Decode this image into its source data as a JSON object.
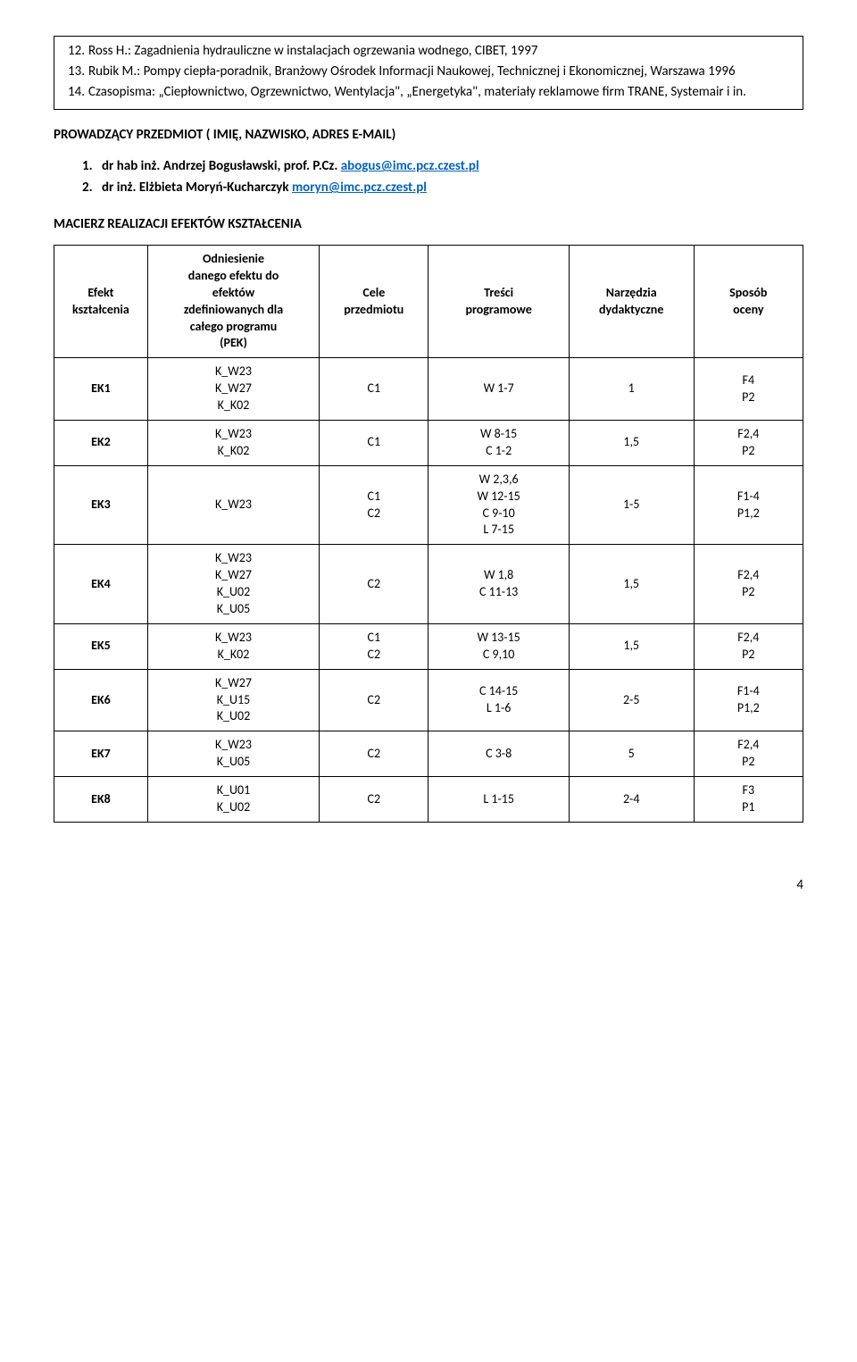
{
  "references": {
    "items": [
      {
        "num": "12.",
        "text": "Ross H.: Zagadnienia hydrauliczne w instalacjach ogrzewania wodnego, CIBET, 1997"
      },
      {
        "num": "13.",
        "text": "Rubik M.: Pompy ciepła-poradnik, Branżowy Ośrodek Informacji Naukowej, Technicznej i Ekonomicznej, Warszawa 1996"
      },
      {
        "num": "14.",
        "text": "Czasopisma: „Ciepłownictwo, Ogrzewnictwo, Wentylacja\", „Energetyka\", materiały reklamowe firm TRANE, Systemair i in."
      }
    ]
  },
  "section_heading": "PROWADZĄCY PRZEDMIOT ( IMIĘ, NAZWISKO, ADRES E-MAIL)",
  "instructors": [
    {
      "num": "1.",
      "prefix": "dr hab inż. Andrzej Bogusławski, prof. P.Cz.  ",
      "email": "abogus@imc.pcz.czest.pl"
    },
    {
      "num": "2.",
      "prefix": "dr inż. Elżbieta Moryń-Kucharczyk   ",
      "email": "moryn@imc.pcz.czest.pl"
    }
  ],
  "matrix_heading": "MACIERZ REALIZACJI EFEKTÓW KSZTAŁCENIA",
  "table": {
    "headers": {
      "efekt": "Efekt\nkształcenia",
      "odniesienie": "Odniesienie\ndanego efektu do\nefektów\nzdefiniowanych dla\ncałego programu\n(PEK)",
      "cele": "Cele\nprzedmiotu",
      "tresci": "Treści\nprogramowe",
      "narzedzia": "Narzędzia\ndydaktyczne",
      "sposob": "Sposób\noceny"
    },
    "rows": [
      {
        "ek": "EK1",
        "odn": "K_W23\nK_W27\nK_K02",
        "cele": "C1",
        "tresci": "W 1-7",
        "narz": "1",
        "sposob": "F4\nP2"
      },
      {
        "ek": "EK2",
        "odn": "K_W23\nK_K02",
        "cele": "C1",
        "tresci": "W 8-15\nC 1-2",
        "narz": "1,5",
        "sposob": "F2,4\nP2"
      },
      {
        "ek": "EK3",
        "odn": "K_W23",
        "cele": "C1\nC2",
        "tresci": "W 2,3,6\nW 12-15\nC 9-10\nL 7-15",
        "narz": "1-5",
        "sposob": "F1-4\nP1,2"
      },
      {
        "ek": "EK4",
        "odn": "K_W23\nK_W27\nK_U02\nK_U05",
        "cele": "C2",
        "tresci": "W 1,8\nC 11-13",
        "narz": "1,5",
        "sposob": "F2,4\nP2"
      },
      {
        "ek": "EK5",
        "odn": "K_W23\nK_K02",
        "cele": "C1\nC2",
        "tresci": "W 13-15\nC 9,10",
        "narz": "1,5",
        "sposob": "F2,4\nP2"
      },
      {
        "ek": "EK6",
        "odn": "K_W27\nK_U15\nK_U02",
        "cele": "C2",
        "tresci": "C 14-15\nL 1-6",
        "narz": "2-5",
        "sposob": "F1-4\nP1,2"
      },
      {
        "ek": "EK7",
        "odn": "K_W23\nK_U05",
        "cele": "C2",
        "tresci": "C 3-8",
        "narz": "5",
        "sposob": "F2,4\nP2"
      },
      {
        "ek": "EK8",
        "odn": "K_U01\nK_U02",
        "cele": "C2",
        "tresci": "L 1-15",
        "narz": "2-4",
        "sposob": "F3\nP1"
      }
    ]
  },
  "page_number": "4"
}
